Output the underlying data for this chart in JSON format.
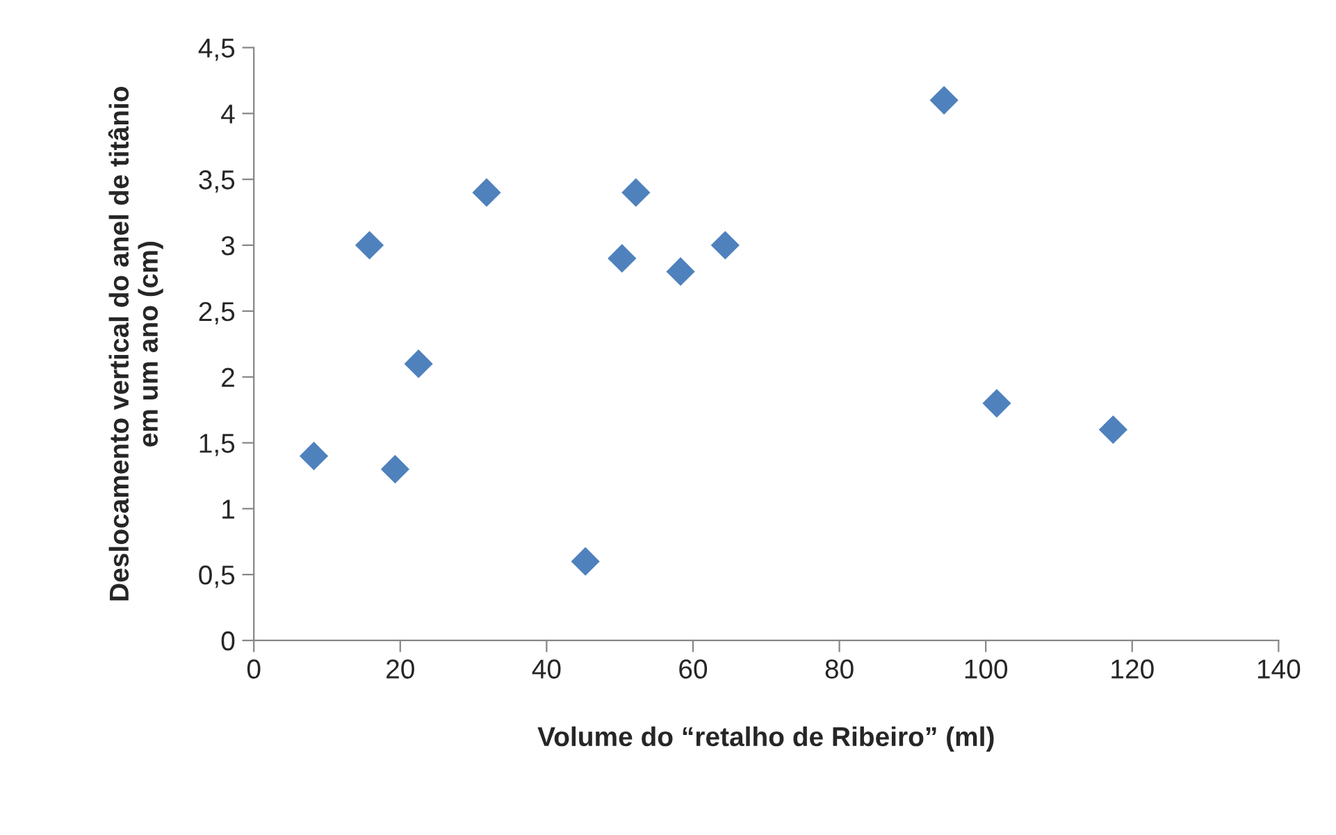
{
  "chart_data": {
    "type": "scatter",
    "xlabel": "Volume do “retalho de Ribeiro” (ml)",
    "ylabel": "Deslocamento vertical do anel de titânio\nem um ano (cm)",
    "x": [
      8.2,
      15.8,
      19.3,
      22.5,
      31.8,
      45.3,
      50.3,
      52.2,
      58.3,
      64.4,
      94.3,
      101.5,
      117.4
    ],
    "values": [
      1.4,
      3.0,
      1.3,
      2.1,
      3.4,
      0.6,
      2.9,
      3.4,
      2.8,
      3.0,
      4.1,
      1.8,
      1.6
    ],
    "color": "#4f81bd",
    "marker": "diamond",
    "xlim": [
      0,
      140
    ],
    "xticks": [
      0,
      20,
      40,
      60,
      80,
      100,
      120,
      140
    ],
    "ylim": [
      0,
      4.5
    ],
    "yticks": [
      0,
      {
        "value": 0.5,
        "label": "0,5"
      },
      1,
      {
        "value": 1.5,
        "label": "1,5"
      },
      2,
      {
        "value": 2.5,
        "label": "2,5"
      },
      3,
      {
        "value": 3.5,
        "label": "3,5"
      },
      4,
      {
        "value": 4.5,
        "label": "4,5"
      }
    ],
    "grid": false
  }
}
